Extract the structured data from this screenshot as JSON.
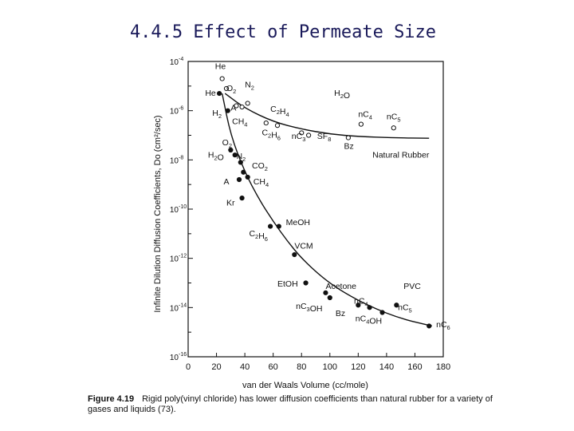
{
  "slide_title": "4.4.5 Effect of Permeate Size",
  "caption": {
    "label": "Figure 4.19",
    "text": "Rigid poly(vinyl chloride) has lower diffusion coefficients than natural rubber for a variety of gases and liquids (73)."
  },
  "chart_data": {
    "type": "scatter",
    "xlabel": "van der Waals Volume (cc/mole)",
    "ylabel": "Infinite Dilution Diffusion Coefficients, Do (cm²/sec)",
    "xlim": [
      0,
      180
    ],
    "ylim_log10": [
      -16,
      -4
    ],
    "x_ticks": [
      "0",
      "20",
      "40",
      "60",
      "80",
      "100",
      "120",
      "140",
      "160",
      "180"
    ],
    "y_ticks": [
      {
        "exp": -4,
        "label": "10"
      },
      {
        "exp": -6,
        "label": "10"
      },
      {
        "exp": -8,
        "label": "10"
      },
      {
        "exp": -10,
        "label": "10"
      },
      {
        "exp": -12,
        "label": "10"
      },
      {
        "exp": -14,
        "label": "10"
      },
      {
        "exp": -16,
        "label": "10"
      }
    ],
    "series": [
      {
        "name": "Natural Rubber",
        "marker": "open",
        "points": [
          {
            "label": "He",
            "x": 24,
            "log10y": -4.7
          },
          {
            "label": "O2",
            "x": 27,
            "log10y": -5.1
          },
          {
            "label": "N2",
            "x": 42,
            "log10y": -5.7
          },
          {
            "label": "A",
            "x": 34,
            "log10y": -5.8
          },
          {
            "label": "CH4",
            "x": 38,
            "log10y": -5.85
          },
          {
            "label": "C2H4",
            "x": 55,
            "log10y": -6.5
          },
          {
            "label": "C2H6",
            "x": 63,
            "log10y": -6.6
          },
          {
            "label": "nC3",
            "x": 80,
            "log10y": -6.9
          },
          {
            "label": "SF8",
            "x": 85,
            "log10y": -7.0
          },
          {
            "label": "Bz",
            "x": 113,
            "log10y": -7.1
          },
          {
            "label": "nC4",
            "x": 122,
            "log10y": -6.55
          },
          {
            "label": "nC5",
            "x": 145,
            "log10y": -6.7
          }
        ],
        "curve_log10": [
          [
            26,
            -5.3
          ],
          [
            40,
            -5.9
          ],
          [
            60,
            -6.45
          ],
          [
            80,
            -6.75
          ],
          [
            100,
            -6.95
          ],
          [
            120,
            -7.05
          ],
          [
            145,
            -7.1
          ],
          [
            170,
            -7.12
          ]
        ]
      },
      {
        "name": "PVC",
        "marker": "filled",
        "points": [
          {
            "label": "He",
            "x": 22,
            "log10y": -5.3
          },
          {
            "label": "H2",
            "x": 28,
            "log10y": -6.0
          },
          {
            "label": "O2",
            "x": 30,
            "log10y": -7.6
          },
          {
            "label": "H2O",
            "x": 33,
            "log10y": -7.8
          },
          {
            "label": "N2",
            "x": 37,
            "log10y": -8.1
          },
          {
            "label": "CO2",
            "x": 39,
            "log10y": -8.5
          },
          {
            "label": "A",
            "x": 36,
            "log10y": -8.8
          },
          {
            "label": "CH4",
            "x": 42,
            "log10y": -8.7
          },
          {
            "label": "Kr",
            "x": 38,
            "log10y": -9.55
          },
          {
            "label": "MeOH",
            "x": 64,
            "log10y": -10.7
          },
          {
            "label": "C2H6",
            "x": 58,
            "log10y": -10.7
          },
          {
            "label": "VCM",
            "x": 75,
            "log10y": -11.85
          },
          {
            "label": "EtOH",
            "x": 83,
            "log10y": -13.0
          },
          {
            "label": "Acetone",
            "x": 97,
            "log10y": -13.4
          },
          {
            "label": "nC3OH",
            "x": 100,
            "log10y": -13.6
          },
          {
            "label": "nC4",
            "x": 120,
            "log10y": -13.9
          },
          {
            "label": "Bz",
            "x": 128,
            "log10y": -14.0
          },
          {
            "label": "nC4OH",
            "x": 137,
            "log10y": -14.2
          },
          {
            "label": "nC5",
            "x": 147,
            "log10y": -13.9
          },
          {
            "label": "nC6",
            "x": 170,
            "log10y": -14.75
          }
        ],
        "curve_log10": [
          [
            24,
            -5.3
          ],
          [
            30,
            -7.0
          ],
          [
            40,
            -8.5
          ],
          [
            50,
            -9.6
          ],
          [
            60,
            -10.5
          ],
          [
            70,
            -11.3
          ],
          [
            80,
            -12.0
          ],
          [
            95,
            -12.8
          ],
          [
            110,
            -13.4
          ],
          [
            130,
            -14.0
          ],
          [
            150,
            -14.45
          ],
          [
            172,
            -14.75
          ]
        ]
      }
    ],
    "labels": [
      {
        "text": "He",
        "x": 19,
        "log10y": -4.3
      },
      {
        "text": "He",
        "x": 12,
        "log10y": -5.4
      },
      {
        "text": "O2",
        "x": 27,
        "log10y": -5.2
      },
      {
        "text": "N2",
        "x": 40,
        "log10y": -5.05
      },
      {
        "text": "A",
        "x": 30,
        "log10y": -6.0
      },
      {
        "text": "CH4",
        "x": 31,
        "log10y": -6.55
      },
      {
        "text": "H2",
        "x": 17,
        "log10y": -6.2
      },
      {
        "text": "C2H4",
        "x": 58,
        "log10y": -6.05
      },
      {
        "text": "C2H6",
        "x": 52,
        "log10y": -7.0
      },
      {
        "text": "nC3",
        "x": 73,
        "log10y": -7.15
      },
      {
        "text": "SF8",
        "x": 91,
        "log10y": -7.15
      },
      {
        "text": "Bz",
        "x": 110,
        "log10y": -7.55
      },
      {
        "text": "H2O",
        "x": 103,
        "log10y": -5.4
      },
      {
        "text": "nC4",
        "x": 120,
        "log10y": -6.25
      },
      {
        "text": "nC5",
        "x": 140,
        "log10y": -6.35
      },
      {
        "text": "Natural Rubber",
        "x": 130,
        "log10y": -7.9
      },
      {
        "text": "O2",
        "x": 24,
        "log10y": -7.4
      },
      {
        "text": "H2O",
        "x": 14,
        "log10y": -7.9
      },
      {
        "text": "N2",
        "x": 34,
        "log10y": -7.95
      },
      {
        "text": "CO2",
        "x": 45,
        "log10y": -8.35
      },
      {
        "text": "A",
        "x": 25,
        "log10y": -9.0
      },
      {
        "text": "CH4",
        "x": 46,
        "log10y": -9.0
      },
      {
        "text": "Kr",
        "x": 27,
        "log10y": -9.85
      },
      {
        "text": "MeOH",
        "x": 69,
        "log10y": -10.65
      },
      {
        "text": "C2H6",
        "x": 43,
        "log10y": -11.1
      },
      {
        "text": "VCM",
        "x": 75,
        "log10y": -11.6
      },
      {
        "text": "EtOH",
        "x": 63,
        "log10y": -13.15
      },
      {
        "text": "Acetone",
        "x": 97,
        "log10y": -13.25
      },
      {
        "text": "PVC",
        "x": 152,
        "log10y": -13.25
      },
      {
        "text": "nC3OH",
        "x": 76,
        "log10y": -14.05
      },
      {
        "text": "nC4",
        "x": 117,
        "log10y": -13.85
      },
      {
        "text": "Bz",
        "x": 104,
        "log10y": -14.35
      },
      {
        "text": "nC4OH",
        "x": 118,
        "log10y": -14.55
      },
      {
        "text": "nC5",
        "x": 148,
        "log10y": -14.1
      },
      {
        "text": "nC6",
        "x": 175,
        "log10y": -14.8
      }
    ]
  }
}
